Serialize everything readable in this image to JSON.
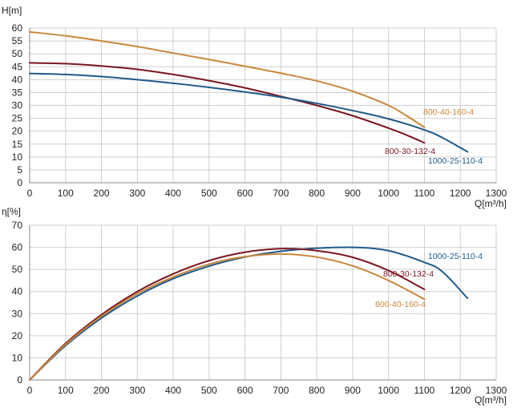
{
  "chart_data": [
    {
      "type": "line",
      "title": "",
      "xlabel": "Q[m³/h]",
      "ylabel": "H[m]",
      "xlim": [
        0,
        1300
      ],
      "ylim": [
        0,
        60
      ],
      "xticks": [
        0,
        100,
        200,
        300,
        400,
        500,
        600,
        700,
        800,
        900,
        1000,
        1100,
        1200,
        1300
      ],
      "yticks": [
        0,
        5,
        10,
        15,
        20,
        25,
        30,
        35,
        40,
        45,
        50,
        55,
        60
      ],
      "grid": true,
      "series": [
        {
          "name": "800-40-160-4",
          "color": "#c8873a",
          "points": [
            [
              0,
              58.5
            ],
            [
              100,
              57
            ],
            [
              200,
              55
            ],
            [
              300,
              52.8
            ],
            [
              400,
              50.3
            ],
            [
              500,
              47.8
            ],
            [
              600,
              45.2
            ],
            [
              700,
              42.5
            ],
            [
              800,
              39.5
            ],
            [
              900,
              35.5
            ],
            [
              1000,
              30
            ],
            [
              1050,
              26
            ],
            [
              1100,
              21.5
            ]
          ]
        },
        {
          "name": "800-30-132-4",
          "color": "#7a1620",
          "points": [
            [
              0,
              46.5
            ],
            [
              100,
              46.2
            ],
            [
              200,
              45.3
            ],
            [
              300,
              44
            ],
            [
              400,
              42
            ],
            [
              500,
              39.6
            ],
            [
              600,
              36.8
            ],
            [
              700,
              33.5
            ],
            [
              800,
              30
            ],
            [
              900,
              26
            ],
            [
              1000,
              21.2
            ],
            [
              1050,
              18.5
            ],
            [
              1100,
              15.5
            ]
          ]
        },
        {
          "name": "1000-25-110-4",
          "color": "#1f5a8c",
          "points": [
            [
              0,
              42.4
            ],
            [
              100,
              42
            ],
            [
              200,
              41.2
            ],
            [
              300,
              40
            ],
            [
              400,
              38.6
            ],
            [
              500,
              37
            ],
            [
              600,
              35.2
            ],
            [
              700,
              33.2
            ],
            [
              800,
              30.8
            ],
            [
              900,
              28
            ],
            [
              1000,
              24.8
            ],
            [
              1100,
              20.5
            ],
            [
              1150,
              17.5
            ],
            [
              1220,
              12
            ]
          ]
        }
      ]
    },
    {
      "type": "line",
      "title": "",
      "xlabel": "Q[m³/h]",
      "ylabel": "η[%]",
      "xlim": [
        0,
        1300
      ],
      "ylim": [
        0,
        70
      ],
      "xticks": [
        0,
        100,
        200,
        300,
        400,
        500,
        600,
        700,
        800,
        900,
        1000,
        1100,
        1200,
        1300
      ],
      "yticks": [
        0,
        10,
        20,
        30,
        40,
        50,
        60,
        70
      ],
      "grid": true,
      "series": [
        {
          "name": "1000-25-110-4",
          "color": "#1f5a8c",
          "points": [
            [
              0,
              0
            ],
            [
              100,
              15.5
            ],
            [
              200,
              28
            ],
            [
              300,
              38
            ],
            [
              400,
              45.8
            ],
            [
              500,
              51.5
            ],
            [
              600,
              55.6
            ],
            [
              700,
              58.2
            ],
            [
              800,
              59.6
            ],
            [
              900,
              60
            ],
            [
              1000,
              58.5
            ],
            [
              1100,
              53.2
            ],
            [
              1150,
              49
            ],
            [
              1220,
              37
            ]
          ]
        },
        {
          "name": "800-30-132-4",
          "color": "#7a1620",
          "points": [
            [
              0,
              0
            ],
            [
              100,
              16.5
            ],
            [
              200,
              29.5
            ],
            [
              300,
              40
            ],
            [
              400,
              48
            ],
            [
              500,
              54
            ],
            [
              600,
              57.8
            ],
            [
              700,
              59.4
            ],
            [
              800,
              58.5
            ],
            [
              900,
              55.5
            ],
            [
              1000,
              49.5
            ],
            [
              1100,
              41
            ]
          ]
        },
        {
          "name": "800-40-160-4",
          "color": "#c8873a",
          "points": [
            [
              0,
              0
            ],
            [
              100,
              16
            ],
            [
              200,
              28.8
            ],
            [
              300,
              39
            ],
            [
              400,
              46.6
            ],
            [
              500,
              52.4
            ],
            [
              600,
              55.8
            ],
            [
              700,
              57
            ],
            [
              800,
              55.6
            ],
            [
              900,
              51.6
            ],
            [
              1000,
              45
            ],
            [
              1100,
              36.5
            ]
          ]
        }
      ]
    }
  ]
}
